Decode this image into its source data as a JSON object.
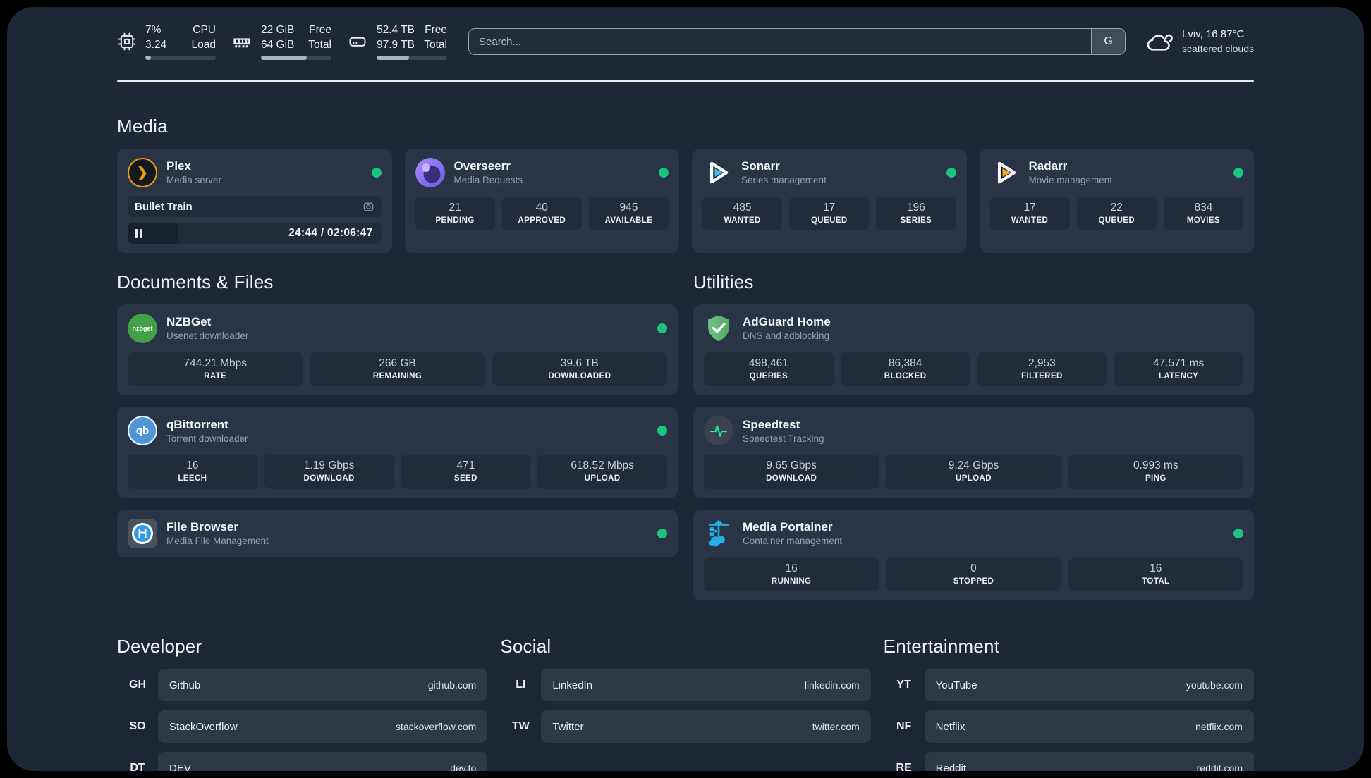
{
  "header": {
    "metrics": [
      {
        "value_top": "7%",
        "value_bottom": "3.24",
        "label_top": "CPU",
        "label_bottom": "Load",
        "progress_pct": 8
      },
      {
        "value_top": "22 GiB",
        "value_bottom": "64 GiB",
        "label_top": "Free",
        "label_bottom": "Total",
        "progress_pct": 65
      },
      {
        "value_top": "52.4 TB",
        "value_bottom": "97.9 TB",
        "label_top": "Free",
        "label_bottom": "Total",
        "progress_pct": 46
      }
    ],
    "search": {
      "placeholder": "Search...",
      "engine_button": "G"
    },
    "weather": {
      "location": "Lviv, 16.87°C",
      "condition": "scattered clouds"
    }
  },
  "sections": {
    "media": {
      "title": "Media",
      "plex": {
        "title": "Plex",
        "subtitle": "Media server",
        "now_playing": {
          "title": "Bullet Train",
          "time_display": "24:44 / 02:06:47",
          "progress_pct": 20
        }
      },
      "overseerr": {
        "title": "Overseerr",
        "subtitle": "Media Requests",
        "stats": [
          {
            "value": "21",
            "label": "PENDING"
          },
          {
            "value": "40",
            "label": "APPROVED"
          },
          {
            "value": "945",
            "label": "AVAILABLE"
          }
        ]
      },
      "sonarr": {
        "title": "Sonarr",
        "subtitle": "Series management",
        "stats": [
          {
            "value": "485",
            "label": "WANTED"
          },
          {
            "value": "17",
            "label": "QUEUED"
          },
          {
            "value": "196",
            "label": "SERIES"
          }
        ]
      },
      "radarr": {
        "title": "Radarr",
        "subtitle": "Movie management",
        "stats": [
          {
            "value": "17",
            "label": "WANTED"
          },
          {
            "value": "22",
            "label": "QUEUED"
          },
          {
            "value": "834",
            "label": "MOVIES"
          }
        ]
      }
    },
    "documents": {
      "title": "Documents & Files",
      "nzbget": {
        "title": "NZBGet",
        "subtitle": "Usenet downloader",
        "icon_text": "nzbget",
        "stats": [
          {
            "value": "744.21 Mbps",
            "label": "RATE"
          },
          {
            "value": "266 GB",
            "label": "REMAINING"
          },
          {
            "value": "39.6 TB",
            "label": "DOWNLOADED"
          }
        ]
      },
      "qbittorrent": {
        "title": "qBittorrent",
        "subtitle": "Torrent downloader",
        "icon_text": "qb",
        "stats": [
          {
            "value": "16",
            "label": "LEECH"
          },
          {
            "value": "1.19 Gbps",
            "label": "DOWNLOAD"
          },
          {
            "value": "471",
            "label": "SEED"
          },
          {
            "value": "618.52 Mbps",
            "label": "UPLOAD"
          }
        ]
      },
      "filebrowser": {
        "title": "File Browser",
        "subtitle": "Media File Management"
      }
    },
    "utilities": {
      "title": "Utilities",
      "adguard": {
        "title": "AdGuard Home",
        "subtitle": "DNS and adblocking",
        "stats": [
          {
            "value": "498,461",
            "label": "QUERIES"
          },
          {
            "value": "86,384",
            "label": "BLOCKED"
          },
          {
            "value": "2,953",
            "label": "FILTERED"
          },
          {
            "value": "47.571 ms",
            "label": "LATENCY"
          }
        ]
      },
      "speedtest": {
        "title": "Speedtest",
        "subtitle": "Speedtest Tracking",
        "stats": [
          {
            "value": "9.65 Gbps",
            "label": "DOWNLOAD"
          },
          {
            "value": "9.24 Gbps",
            "label": "UPLOAD"
          },
          {
            "value": "0.993 ms",
            "label": "PING"
          }
        ]
      },
      "portainer": {
        "title": "Media Portainer",
        "subtitle": "Container management",
        "stats": [
          {
            "value": "16",
            "label": "RUNNING"
          },
          {
            "value": "0",
            "label": "STOPPED"
          },
          {
            "value": "16",
            "label": "TOTAL"
          }
        ]
      }
    },
    "bookmarks": [
      {
        "title": "Developer",
        "links": [
          {
            "abbr": "GH",
            "name": "Github",
            "url": "github.com"
          },
          {
            "abbr": "SO",
            "name": "StackOverflow",
            "url": "stackoverflow.com"
          },
          {
            "abbr": "DT",
            "name": "DEV",
            "url": "dev.to"
          }
        ]
      },
      {
        "title": "Social",
        "links": [
          {
            "abbr": "LI",
            "name": "LinkedIn",
            "url": "linkedin.com"
          },
          {
            "abbr": "TW",
            "name": "Twitter",
            "url": "twitter.com"
          }
        ]
      },
      {
        "title": "Entertainment",
        "links": [
          {
            "abbr": "YT",
            "name": "YouTube",
            "url": "youtube.com"
          },
          {
            "abbr": "NF",
            "name": "Netflix",
            "url": "netflix.com"
          },
          {
            "abbr": "RE",
            "name": "Reddit",
            "url": "reddit.com"
          }
        ]
      }
    ]
  },
  "colors": {
    "status_online": "#1dc47e",
    "plex_accent": "#e5a00d"
  }
}
